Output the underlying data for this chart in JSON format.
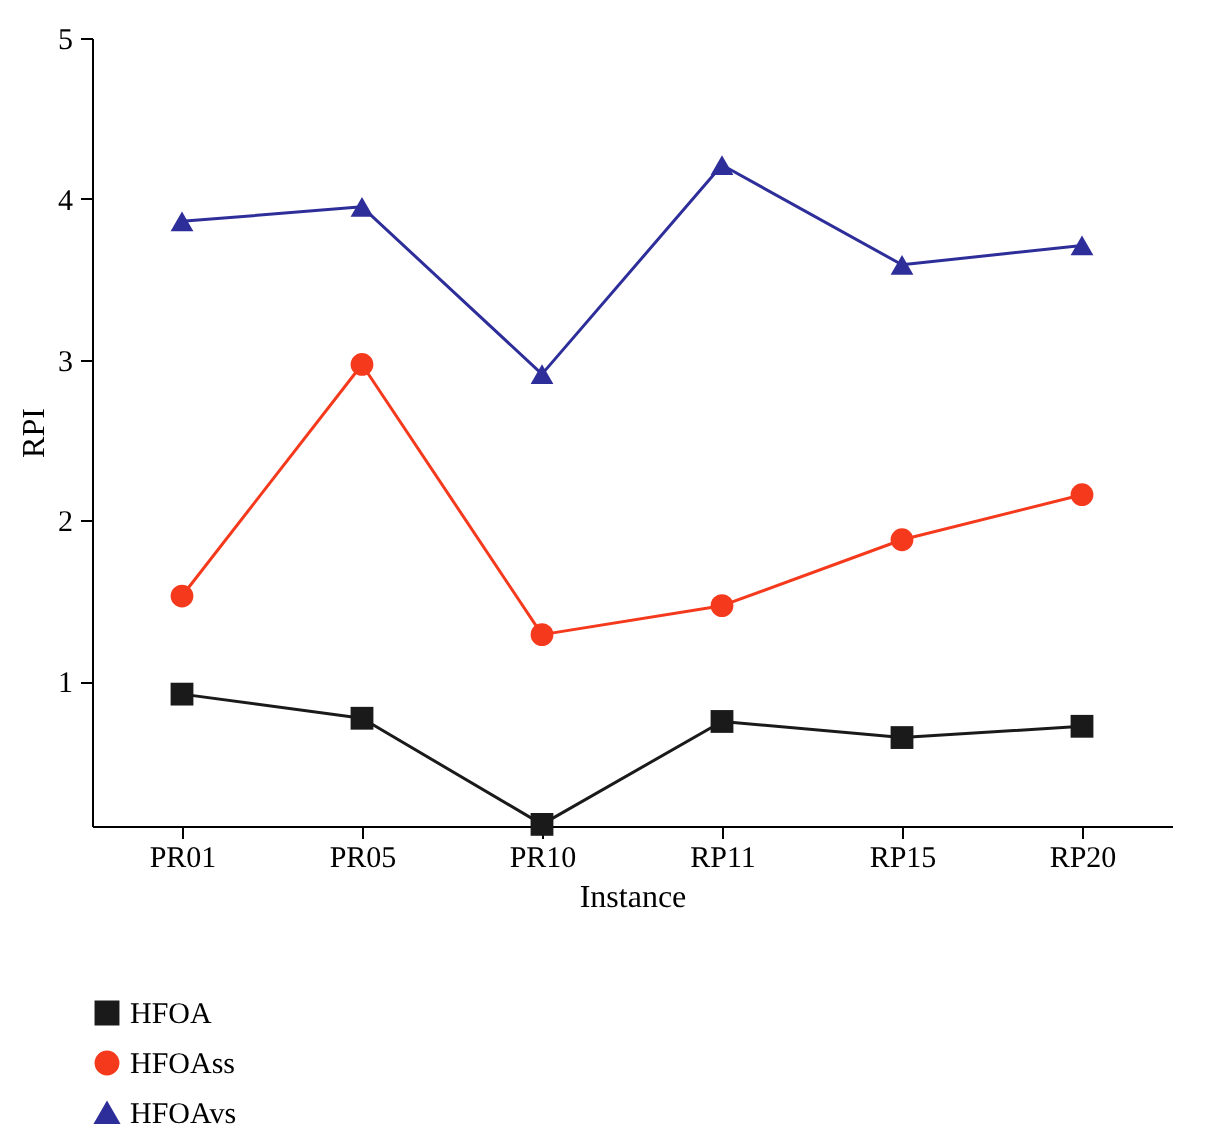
{
  "chart_data": {
    "type": "line",
    "xlabel": "Instance",
    "ylabel": "RPI",
    "categories": [
      "PR01",
      "PR05",
      "PR10",
      "RP11",
      "RP15",
      "RP20"
    ],
    "series": [
      {
        "name": "HFOA",
        "color": "#1a1a1a",
        "marker": "square",
        "values": [
          0.92,
          0.77,
          0.11,
          0.75,
          0.65,
          0.72
        ]
      },
      {
        "name": "HFOAss",
        "color": "#f5391c",
        "marker": "circle",
        "values": [
          1.53,
          2.97,
          1.29,
          1.47,
          1.88,
          2.16
        ]
      },
      {
        "name": "HFOAvs",
        "color": "#2e2e9a",
        "marker": "triangle",
        "values": [
          3.86,
          3.95,
          2.91,
          4.21,
          3.59,
          3.71
        ]
      }
    ],
    "ylim": [
      0.1,
      5
    ],
    "yticks": [
      1,
      2,
      3,
      4,
      5
    ],
    "grid": false,
    "legend": "bottom left",
    "line_style": "solid"
  }
}
